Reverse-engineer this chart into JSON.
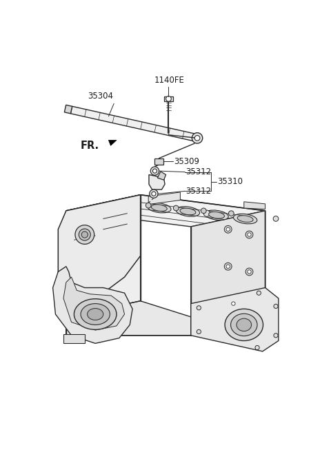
{
  "background_color": "#ffffff",
  "fig_width": 4.8,
  "fig_height": 6.56,
  "dpi": 100,
  "line_color": "#2a2a2a",
  "label_color": "#1a1a1a",
  "label_fontsize": 8.5,
  "fr_fontsize": 10.5
}
